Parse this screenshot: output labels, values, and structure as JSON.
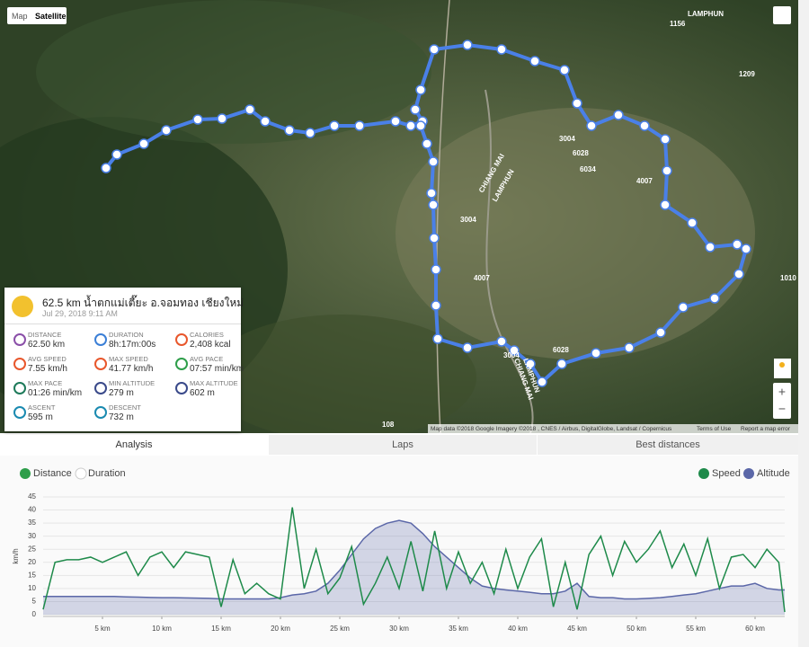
{
  "map": {
    "modes": [
      "Map",
      "Satellite"
    ],
    "zoom": [
      "+",
      "−"
    ],
    "labels": [
      "CHIANG MAI",
      "LAMPHUN",
      "CHIANG MAI",
      "LAMPHUN",
      "LAMPHUN",
      "3004",
      "6028",
      "6034",
      "4007",
      "3004",
      "4007",
      "6028",
      "3004",
      "1010",
      "1209",
      "1156",
      "108"
    ],
    "attribution": "Map data ©2018 Google Imagery ©2018 , CNES / Airbus, DigitalGlobe, Landsat / Copernicus",
    "terms": "Terms of Use",
    "report": "Report a map error"
  },
  "activity": {
    "title": "62.5 km น้ำตกแม่เตี๊ยะ อ.จอมทอง เชียงใหม่",
    "date": "Jul 29, 2018 9:11 AM",
    "stats": [
      {
        "label": "DISTANCE",
        "value": "62.50 km"
      },
      {
        "label": "DURATION",
        "value": "8h:17m:00s"
      },
      {
        "label": "CALORIES",
        "value": "2,408 kcal"
      },
      {
        "label": "AVG SPEED",
        "value": "7.55 km/h"
      },
      {
        "label": "MAX SPEED",
        "value": "41.77 km/h"
      },
      {
        "label": "AVG PACE",
        "value": "07:57 min/km"
      },
      {
        "label": "MAX PACE",
        "value": "01:26 min/km"
      },
      {
        "label": "MIN ALTITUDE",
        "value": "279 m"
      },
      {
        "label": "MAX ALTITUDE",
        "value": "602 m"
      },
      {
        "label": "ASCENT",
        "value": "595 m"
      },
      {
        "label": "DESCENT",
        "value": "732 m"
      }
    ]
  },
  "tabs": [
    "Analysis",
    "Laps",
    "Best distances"
  ],
  "chart_data": {
    "type": "line",
    "x_modes": [
      "Distance",
      "Duration"
    ],
    "ylabel": "km/h",
    "x": [
      0,
      1,
      2,
      3,
      4,
      5,
      6,
      7,
      8,
      9,
      10,
      11,
      12,
      13,
      14,
      15,
      16,
      17,
      18,
      19,
      20,
      21,
      22,
      23,
      24,
      25,
      26,
      27,
      28,
      29,
      30,
      31,
      32,
      33,
      34,
      35,
      36,
      37,
      38,
      39,
      40,
      41,
      42,
      43,
      44,
      45,
      46,
      47,
      48,
      49,
      50,
      51,
      52,
      53,
      54,
      55,
      56,
      57,
      58,
      59,
      60,
      61,
      62,
      62.5
    ],
    "xlim": [
      0,
      62.5
    ],
    "xticks": [
      {
        "value": 5,
        "label": "5 km"
      },
      {
        "value": 10,
        "label": "10 km"
      },
      {
        "value": 15,
        "label": "15 km"
      },
      {
        "value": 20,
        "label": "20 km"
      },
      {
        "value": 25,
        "label": "25 km"
      },
      {
        "value": 30,
        "label": "30 km"
      },
      {
        "value": 35,
        "label": "35 km"
      },
      {
        "value": 40,
        "label": "40 km"
      },
      {
        "value": 45,
        "label": "45 km"
      },
      {
        "value": 50,
        "label": "50 km"
      },
      {
        "value": 55,
        "label": "55 km"
      },
      {
        "value": 60,
        "label": "60 km"
      }
    ],
    "ylim": [
      0,
      45
    ],
    "yticks": [
      0,
      5,
      10,
      15,
      20,
      25,
      30,
      35,
      40,
      45
    ],
    "y2lim": [
      214,
      699
    ],
    "series": [
      {
        "name": "Speed",
        "color": "#1e8a4a",
        "values": [
          2,
          20,
          21,
          21,
          22,
          20,
          22,
          24,
          15,
          22,
          24,
          18,
          24,
          23,
          22,
          3,
          21,
          8,
          12,
          8,
          6,
          41,
          10,
          25,
          8,
          14,
          26,
          4,
          12,
          22,
          10,
          28,
          9,
          32,
          10,
          24,
          12,
          20,
          8,
          25,
          10,
          22,
          29,
          3,
          20,
          2,
          23,
          30,
          15,
          28,
          20,
          25,
          32,
          18,
          27,
          15,
          29,
          10,
          22,
          23,
          18,
          25,
          20,
          1
        ]
      },
      {
        "name": "Altitude",
        "color": "#5b67a8",
        "axis": "y2",
        "area": true,
        "values": [
          289,
          289,
          289,
          289,
          289,
          289,
          289,
          287,
          286,
          285,
          284,
          284,
          283,
          282,
          281,
          279,
          279,
          279,
          279,
          279,
          284,
          295,
          300,
          311,
          343,
          397,
          462,
          526,
          569,
          591,
          602,
          591,
          548,
          494,
          451,
          408,
          365,
          332,
          322,
          316,
          311,
          306,
          300,
          300,
          311,
          343,
          289,
          284,
          284,
          279,
          279,
          281,
          284,
          289,
          295,
          300,
          311,
          322,
          332,
          332,
          343,
          322,
          316,
          316
        ]
      }
    ]
  }
}
